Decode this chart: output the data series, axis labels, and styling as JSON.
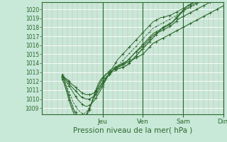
{
  "title": "Pression niveau de la mer( hPa )",
  "ylabel_values": [
    1009,
    1010,
    1011,
    1012,
    1013,
    1014,
    1015,
    1016,
    1017,
    1018,
    1019,
    1020
  ],
  "ylim": [
    1008.3,
    1020.8
  ],
  "xlim": [
    -12,
    96
  ],
  "xtick_positions": [
    24,
    48,
    72,
    96
  ],
  "xtick_labels": [
    "Jeu",
    "Ven",
    "Sam",
    "Dim"
  ],
  "bg_color": "#c8e8d8",
  "grid_color_major_h": "#ffffff",
  "grid_color_minor_v": "#d8b8b8",
  "line_color": "#2d6a2d",
  "n_hours": 97,
  "series": [
    [
      1012.5,
      1012.3,
      1012.0,
      1011.8,
      1011.5,
      1011.2,
      1010.9,
      1010.6,
      1010.3,
      1010.0,
      1009.8,
      1009.6,
      1009.4,
      1009.3,
      1009.2,
      1009.2,
      1009.3,
      1009.4,
      1009.6,
      1009.8,
      1010.1,
      1010.4,
      1010.7,
      1011.0,
      1011.4,
      1011.8,
      1012.1,
      1012.5,
      1012.9,
      1013.2,
      1013.5,
      1013.8,
      1014.1,
      1014.4,
      1014.6,
      1014.8,
      1015.0,
      1015.2,
      1015.4,
      1015.6,
      1015.8,
      1016.0,
      1016.2,
      1016.4,
      1016.6,
      1016.8,
      1017.0,
      1017.2,
      1017.4,
      1017.6,
      1017.8,
      1018.0,
      1018.2,
      1018.4,
      1018.6,
      1018.7,
      1018.8,
      1018.9,
      1019.0,
      1019.1,
      1019.1,
      1019.2,
      1019.2,
      1019.3,
      1019.3,
      1019.4,
      1019.5,
      1019.6,
      1019.7,
      1019.8,
      1019.9,
      1020.0,
      1020.1,
      1020.2,
      1020.3,
      1020.4,
      1020.5,
      1020.6,
      1020.7,
      1020.8,
      1020.9,
      1021.0,
      1021.1,
      1021.2,
      1021.3,
      1021.4,
      1021.5,
      1021.6,
      1021.7,
      1021.8,
      1021.9,
      1022.0,
      1022.1,
      1022.2,
      1022.3,
      1022.4,
      1022.5
    ],
    [
      1012.5,
      1012.2,
      1011.8,
      1011.3,
      1010.8,
      1010.4,
      1009.9,
      1009.5,
      1009.2,
      1008.9,
      1008.7,
      1008.5,
      1008.4,
      1008.4,
      1008.5,
      1008.7,
      1009.0,
      1009.3,
      1009.7,
      1010.1,
      1010.5,
      1010.9,
      1011.2,
      1011.5,
      1011.8,
      1012.0,
      1012.3,
      1012.5,
      1012.7,
      1012.9,
      1013.1,
      1013.3,
      1013.5,
      1013.7,
      1013.9,
      1014.1,
      1014.3,
      1014.5,
      1014.7,
      1014.9,
      1015.1,
      1015.3,
      1015.5,
      1015.7,
      1015.9,
      1016.1,
      1016.3,
      1016.5,
      1016.7,
      1016.9,
      1017.1,
      1017.3,
      1017.5,
      1017.7,
      1017.9,
      1018.0,
      1018.1,
      1018.2,
      1018.3,
      1018.4,
      1018.5,
      1018.6,
      1018.7,
      1018.8,
      1018.9,
      1019.0,
      1019.1,
      1019.2,
      1019.3,
      1019.5,
      1019.6,
      1019.7,
      1019.8,
      1019.9,
      1020.0,
      1020.1,
      1020.2,
      1020.3,
      1020.4,
      1020.5,
      1020.6,
      1020.7,
      1020.8,
      1020.9,
      1021.0,
      1021.1,
      1021.2,
      1021.3,
      1021.5,
      1021.6,
      1021.7,
      1021.8,
      1021.9,
      1022.0,
      1022.1,
      1022.2,
      1022.3
    ],
    [
      1012.4,
      1012.1,
      1011.6,
      1011.0,
      1010.4,
      1009.8,
      1009.3,
      1008.8,
      1008.5,
      1008.2,
      1008.0,
      1007.9,
      1007.9,
      1008.0,
      1008.2,
      1008.5,
      1008.9,
      1009.3,
      1009.8,
      1010.3,
      1010.8,
      1011.2,
      1011.6,
      1012.0,
      1012.3,
      1012.5,
      1012.7,
      1012.9,
      1013.1,
      1013.3,
      1013.4,
      1013.5,
      1013.6,
      1013.7,
      1013.8,
      1013.9,
      1014.0,
      1014.1,
      1014.2,
      1014.3,
      1014.5,
      1014.7,
      1014.9,
      1015.1,
      1015.3,
      1015.5,
      1015.7,
      1015.9,
      1016.1,
      1016.3,
      1016.5,
      1016.7,
      1016.9,
      1017.1,
      1017.3,
      1017.4,
      1017.5,
      1017.6,
      1017.7,
      1017.8,
      1017.9,
      1018.0,
      1018.1,
      1018.2,
      1018.3,
      1018.5,
      1018.7,
      1018.9,
      1019.1,
      1019.3,
      1019.5,
      1019.7,
      1019.9,
      1020.1,
      1020.3,
      1020.4,
      1020.5,
      1020.6,
      1020.7,
      1020.8,
      1020.9,
      1021.0,
      1021.1,
      1021.2,
      1021.3,
      1021.4,
      1021.5,
      1021.6,
      1021.7,
      1021.8,
      1022.0,
      1022.1,
      1022.2,
      1022.3,
      1022.4,
      1022.6,
      1022.8
    ],
    [
      1012.3,
      1011.9,
      1011.4,
      1010.8,
      1010.2,
      1009.6,
      1009.1,
      1008.6,
      1008.3,
      1008.0,
      1007.8,
      1007.7,
      1007.7,
      1007.8,
      1008.1,
      1008.4,
      1008.9,
      1009.4,
      1009.9,
      1010.4,
      1010.9,
      1011.3,
      1011.6,
      1011.9,
      1012.1,
      1012.3,
      1012.5,
      1012.6,
      1012.8,
      1012.9,
      1013.0,
      1013.1,
      1013.2,
      1013.3,
      1013.4,
      1013.5,
      1013.6,
      1013.7,
      1013.8,
      1013.9,
      1014.1,
      1014.3,
      1014.5,
      1014.7,
      1014.9,
      1015.1,
      1015.3,
      1015.5,
      1015.7,
      1015.9,
      1016.1,
      1016.3,
      1016.5,
      1016.7,
      1016.9,
      1017.1,
      1017.3,
      1017.5,
      1017.7,
      1017.9,
      1018.0,
      1018.1,
      1018.2,
      1018.3,
      1018.4,
      1018.5,
      1018.6,
      1018.8,
      1019.1,
      1019.3,
      1019.5,
      1019.7,
      1019.9,
      1020.1,
      1020.3,
      1020.5,
      1020.6,
      1020.7,
      1020.8,
      1020.9,
      1021.0,
      1021.1,
      1021.2,
      1021.3,
      1021.4,
      1021.5,
      1021.6,
      1021.7,
      1021.8,
      1022.0,
      1022.1,
      1022.2,
      1022.3,
      1022.4,
      1022.5,
      1022.7,
      1022.9
    ],
    [
      1012.2,
      1011.8,
      1011.2,
      1010.6,
      1009.9,
      1009.3,
      1008.8,
      1008.4,
      1008.0,
      1007.8,
      1007.6,
      1007.5,
      1007.5,
      1007.6,
      1007.9,
      1008.3,
      1008.8,
      1009.3,
      1009.9,
      1010.5,
      1011.0,
      1011.5,
      1011.9,
      1012.2,
      1012.4,
      1012.6,
      1012.8,
      1012.9,
      1013.0,
      1013.1,
      1013.2,
      1013.3,
      1013.3,
      1013.4,
      1013.4,
      1013.5,
      1013.5,
      1013.6,
      1013.7,
      1013.8,
      1014.0,
      1014.2,
      1014.4,
      1014.6,
      1014.8,
      1015.0,
      1015.2,
      1015.4,
      1015.6,
      1015.8,
      1016.0,
      1016.2,
      1016.4,
      1016.6,
      1016.8,
      1017.0,
      1017.2,
      1017.4,
      1017.6,
      1017.8,
      1018.0,
      1018.1,
      1018.2,
      1018.3,
      1018.4,
      1018.5,
      1018.6,
      1018.8,
      1019.0,
      1019.2,
      1019.4,
      1019.6,
      1019.8,
      1020.0,
      1020.1,
      1020.2,
      1020.3,
      1020.4,
      1020.5,
      1020.6,
      1020.7,
      1020.8,
      1020.9,
      1021.0,
      1021.1,
      1021.2,
      1021.3,
      1021.4,
      1021.5,
      1021.6,
      1021.7,
      1021.8,
      1021.9,
      1022.0,
      1022.1,
      1022.2,
      1022.3
    ],
    [
      1012.6,
      1012.4,
      1012.2,
      1012.0,
      1011.8,
      1011.5,
      1011.3,
      1011.1,
      1010.9,
      1010.7,
      1010.5,
      1010.3,
      1010.2,
      1010.1,
      1010.0,
      1010.0,
      1010.0,
      1010.1,
      1010.2,
      1010.3,
      1010.5,
      1010.7,
      1011.0,
      1011.3,
      1011.6,
      1011.9,
      1012.2,
      1012.5,
      1012.7,
      1013.0,
      1013.2,
      1013.4,
      1013.5,
      1013.6,
      1013.7,
      1013.8,
      1013.9,
      1014.0,
      1014.1,
      1014.3,
      1014.5,
      1014.7,
      1014.9,
      1015.1,
      1015.3,
      1015.4,
      1015.6,
      1015.7,
      1015.9,
      1016.1,
      1016.3,
      1016.5,
      1016.7,
      1016.9,
      1017.1,
      1017.2,
      1017.3,
      1017.4,
      1017.5,
      1017.6,
      1017.7,
      1017.8,
      1017.9,
      1018.0,
      1018.1,
      1018.2,
      1018.4,
      1018.5,
      1018.7,
      1018.9,
      1019.0,
      1019.1,
      1019.2,
      1019.3,
      1019.4,
      1019.5,
      1019.6,
      1019.7,
      1019.8,
      1019.9,
      1020.0,
      1020.1,
      1020.2,
      1020.3,
      1020.4,
      1020.5,
      1020.6,
      1020.7,
      1020.8,
      1020.9,
      1021.0,
      1021.1,
      1021.2,
      1021.3,
      1021.4,
      1021.5,
      1021.6
    ],
    [
      1012.7,
      1012.5,
      1012.3,
      1012.2,
      1012.0,
      1011.8,
      1011.6,
      1011.5,
      1011.3,
      1011.1,
      1011.0,
      1010.8,
      1010.7,
      1010.6,
      1010.5,
      1010.5,
      1010.5,
      1010.5,
      1010.6,
      1010.7,
      1010.9,
      1011.1,
      1011.3,
      1011.6,
      1011.9,
      1012.1,
      1012.4,
      1012.6,
      1012.8,
      1013.0,
      1013.2,
      1013.3,
      1013.4,
      1013.5,
      1013.6,
      1013.7,
      1013.8,
      1013.9,
      1014.0,
      1014.1,
      1014.2,
      1014.3,
      1014.4,
      1014.5,
      1014.6,
      1014.7,
      1014.8,
      1014.9,
      1015.0,
      1015.2,
      1015.4,
      1015.6,
      1015.8,
      1016.0,
      1016.2,
      1016.3,
      1016.4,
      1016.5,
      1016.6,
      1016.7,
      1016.8,
      1016.9,
      1017.0,
      1017.1,
      1017.2,
      1017.3,
      1017.4,
      1017.5,
      1017.6,
      1017.7,
      1017.8,
      1017.9,
      1018.0,
      1018.1,
      1018.2,
      1018.3,
      1018.4,
      1018.5,
      1018.6,
      1018.7,
      1018.8,
      1018.9,
      1019.0,
      1019.1,
      1019.2,
      1019.3,
      1019.4,
      1019.5,
      1019.6,
      1019.7,
      1019.8,
      1019.9,
      1020.0,
      1020.1,
      1020.2,
      1020.3,
      1020.4
    ]
  ]
}
